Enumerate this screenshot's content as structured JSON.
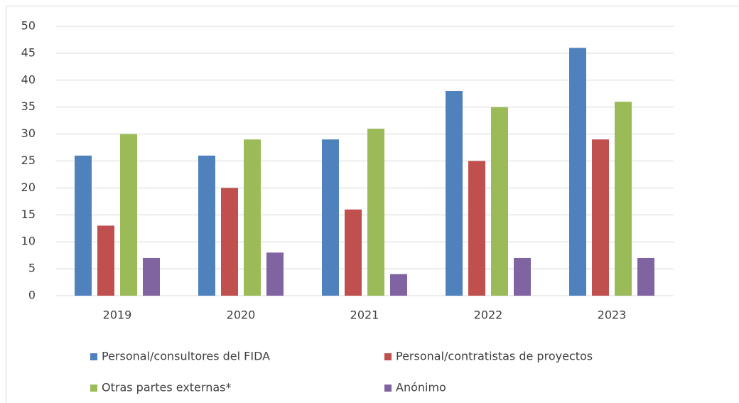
{
  "chart_data": {
    "type": "bar",
    "categories": [
      "2019",
      "2020",
      "2021",
      "2022",
      "2023"
    ],
    "series": [
      {
        "name": "Personal/consultores del FIDA",
        "color": "#4f81bd",
        "values": [
          26,
          26,
          29,
          38,
          46
        ]
      },
      {
        "name": "Personal/contratistas de proyectos",
        "color": "#c0504d",
        "values": [
          13,
          20,
          16,
          25,
          29
        ]
      },
      {
        "name": "Otras partes externas*",
        "color": "#9bbb59",
        "values": [
          30,
          29,
          31,
          35,
          36
        ]
      },
      {
        "name": "Anónimo",
        "color": "#8064a2",
        "values": [
          7,
          8,
          4,
          7,
          7
        ]
      }
    ],
    "ylim": [
      0,
      50
    ],
    "yticks": [
      0,
      5,
      10,
      15,
      20,
      25,
      30,
      35,
      40,
      45,
      50
    ],
    "grid": true,
    "legend": "bottom"
  }
}
